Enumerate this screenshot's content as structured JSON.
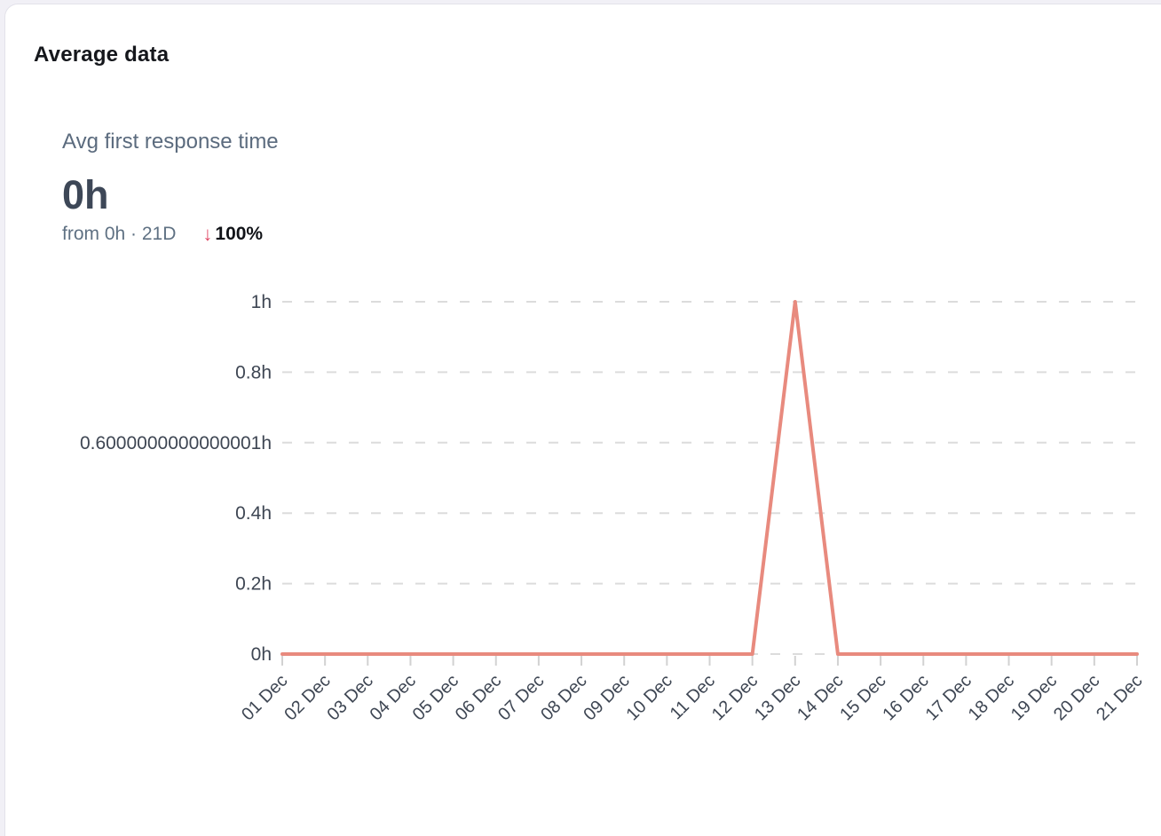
{
  "card": {
    "title": "Average data"
  },
  "metric": {
    "name": "Avg first response time",
    "value": "0h",
    "comparison_text": "from 0h · 21D",
    "trend_icon": "↓",
    "trend_icon_name": "arrow-down-icon",
    "trend_value": "100%"
  },
  "colors": {
    "series": "#e88a7e",
    "grid": "#dcdcdc",
    "tick": "#d2d2d2",
    "axis_text": "#3e4653",
    "trend_negative": "#e04a67",
    "card_background": "#ffffff",
    "page_background": "#f1f0f6",
    "value_text": "#3d4757",
    "metric_name_text": "#5b6b7e"
  },
  "chart_data": {
    "type": "line",
    "title": "",
    "xlabel": "",
    "ylabel": "",
    "x": [
      "01 Dec",
      "02 Dec",
      "03 Dec",
      "04 Dec",
      "05 Dec",
      "06 Dec",
      "07 Dec",
      "08 Dec",
      "09 Dec",
      "10 Dec",
      "11 Dec",
      "12 Dec",
      "13 Dec",
      "14 Dec",
      "15 Dec",
      "16 Dec",
      "17 Dec",
      "18 Dec",
      "19 Dec",
      "20 Dec",
      "21 Dec"
    ],
    "series": [
      {
        "name": "Avg first response time",
        "values": [
          0,
          0,
          0,
          0,
          0,
          0,
          0,
          0,
          0,
          0,
          0,
          0,
          1,
          0,
          0,
          0,
          0,
          0,
          0,
          0,
          0
        ],
        "style": "solid"
      }
    ],
    "unit": "h",
    "ylim": [
      0,
      1
    ],
    "yticks": [
      {
        "value": 0,
        "label": "0h"
      },
      {
        "value": 0.2,
        "label": "0.2h"
      },
      {
        "value": 0.4,
        "label": "0.4h"
      },
      {
        "value": 0.6000000000000001,
        "label": "0.6000000000000001h"
      },
      {
        "value": 0.8,
        "label": "0.8h"
      },
      {
        "value": 1,
        "label": "1h"
      }
    ],
    "grid": "dashed-horizontal",
    "legend": "none",
    "x_label_rotation": -45
  }
}
